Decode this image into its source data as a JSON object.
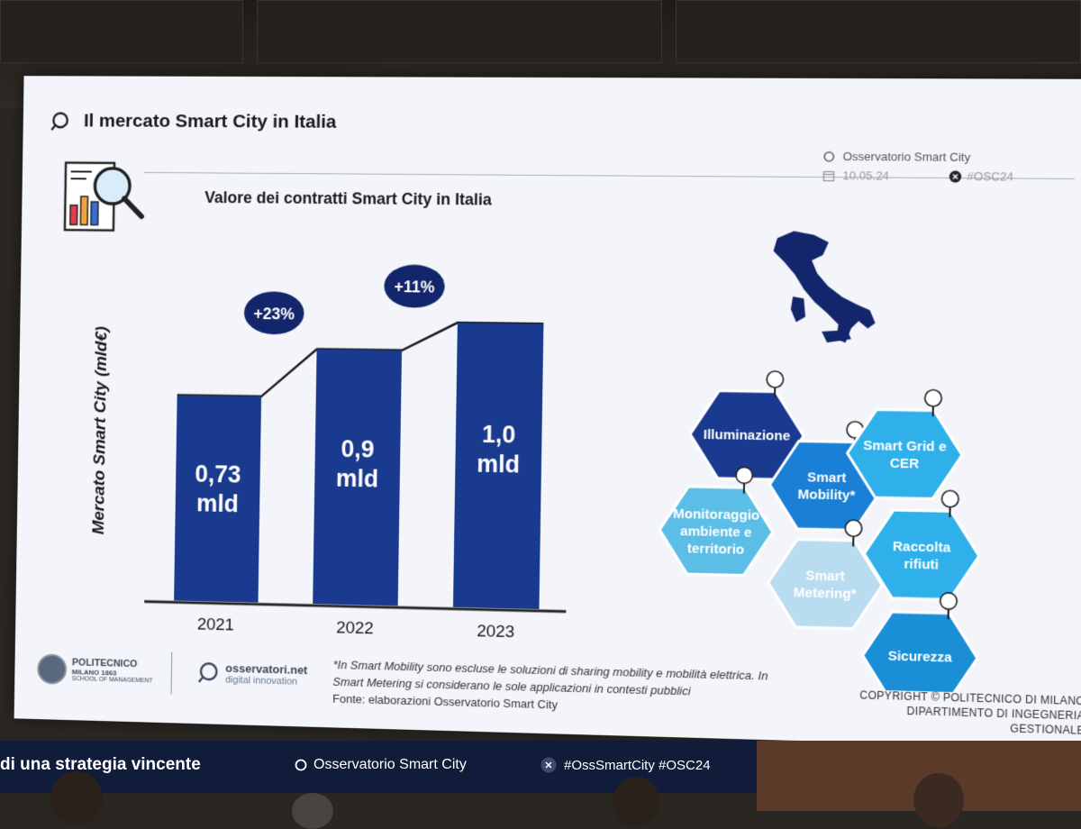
{
  "slide": {
    "title": "Il mercato Smart City in Italia",
    "meta_source": "Osservatorio Smart City",
    "meta_date": "10.05.24",
    "meta_hashtag": "#OSC24"
  },
  "chart_data": {
    "type": "bar",
    "title": "Valore dei contratti Smart City in Italia",
    "ylabel": "Mercato Smart City (mld€)",
    "categories": [
      "2021",
      "2022",
      "2023"
    ],
    "values": [
      0.73,
      0.9,
      1.0
    ],
    "value_labels": [
      "0,73 mld",
      "0,9 mld",
      "1,0 mld"
    ],
    "growth_labels": [
      "+23%",
      "+11%"
    ],
    "ylim": [
      0,
      1.2
    ],
    "grid": false,
    "bar_color": "#1a3a8f"
  },
  "areas": [
    {
      "label": "Illuminazione",
      "color": "#1a3a8f",
      "icon": "streetlamp-icon"
    },
    {
      "label": "Smart Mobility*",
      "color": "#1a7fd6",
      "icon": "car-icon"
    },
    {
      "label": "Smart Grid e CER",
      "color": "#2fb0ea",
      "icon": "power-pylon-icon"
    },
    {
      "label": "Monitoraggio ambiente e territorio",
      "color": "#5cbde6",
      "icon": "mountain-icon"
    },
    {
      "label": "Smart Metering*",
      "color": "#b9dcf0",
      "icon": "meter-icon"
    },
    {
      "label": "Raccolta rifiuti",
      "color": "#2fb0ea",
      "icon": "trash-bin-icon"
    },
    {
      "label": "Sicurezza",
      "color": "#1a8fd6",
      "icon": "camera-icon"
    }
  ],
  "footer": {
    "note_line1": "*In Smart Mobility sono escluse le soluzioni di sharing mobility e mobilità elettrica. In",
    "note_line2": "Smart Metering si considerano le sole applicazioni in contesti pubblici",
    "source": "Fonte: elaborazioni Osservatorio Smart City",
    "copyright_line1": "COPYRIGHT © POLITECNICO DI MILANO",
    "copyright_line2": "DIPARTIMENTO DI INGEGNERIA GESTIONALE",
    "logo_poli_name": "POLITECNICO",
    "logo_poli_sub": "MILANO 1863",
    "logo_poli_school": "SCHOOL OF MANAGEMENT",
    "logo_osserv_name": "osservatori.net",
    "logo_osserv_sub": "digital innovation"
  },
  "banner": {
    "slogan": "di una strategia vincente",
    "observatory": "Osservatorio Smart City",
    "hashtags": "#OssSmartCity #OSC24"
  },
  "colors": {
    "bar": "#1a3a8f",
    "badge": "#13266b",
    "banner": "#101c3a"
  }
}
